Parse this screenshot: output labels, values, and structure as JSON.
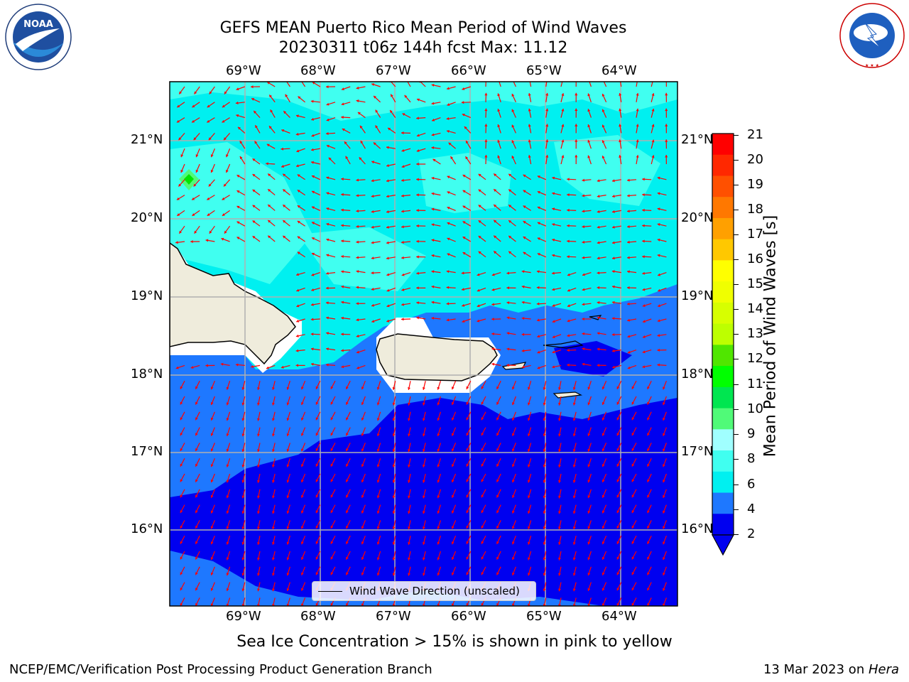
{
  "header": {
    "title_line1": "GEFS MEAN Puerto Rico Mean Period of Wind Waves",
    "title_line2": "20230311 t06z 144h fcst   Max: 11.12"
  },
  "logos": {
    "left": "NOAA",
    "left_ring": "NATIONAL OCEANIC AND ATMOSPHERIC ADMINISTRATION · U.S. DEPARTMENT OF COMMERCE",
    "right_ring": "NATIONAL WEATHER SERVICE"
  },
  "map": {
    "lon_labels": [
      "69°W",
      "68°W",
      "67°W",
      "66°W",
      "65°W",
      "64°W"
    ],
    "lat_labels": [
      "21°N",
      "20°N",
      "19°N",
      "18°N",
      "17°N",
      "16°N"
    ],
    "legend_label": "Wind Wave Direction (unscaled)",
    "colors": {
      "land": "#efecdc",
      "vector": "#ff0000",
      "grid": "#b0b0b0",
      "band_2_4": "#1e78ff",
      "band_below_2": "#0000f0",
      "band_4_6": "#00f0f0",
      "band_6_8": "#40fff0"
    }
  },
  "colorbar": {
    "label": "Mean Period of Wind Waves [s]",
    "ticks": [
      "21",
      "20",
      "19",
      "18",
      "17",
      "16",
      "15",
      "14",
      "13",
      "12",
      "11",
      "10",
      "9",
      "8",
      "6",
      "4",
      "2"
    ],
    "colors": [
      "#ff0000",
      "#ff2800",
      "#ff5000",
      "#ff7800",
      "#ffa000",
      "#ffc800",
      "#ffff00",
      "#f0ff00",
      "#d7ff00",
      "#bdff00",
      "#50e600",
      "#00ff00",
      "#00e650",
      "#50fa78",
      "#a0ffff",
      "#40fff0",
      "#00f0f0",
      "#1e78ff",
      "#0000f0"
    ]
  },
  "notes": {
    "sea_ice": "Sea Ice Concentration > 15% is shown in pink to yellow",
    "branch": "NCEP/EMC/Verification Post Processing Product Generation Branch",
    "date_prefix": "13 Mar 2023 on ",
    "date_host": "Hera"
  }
}
